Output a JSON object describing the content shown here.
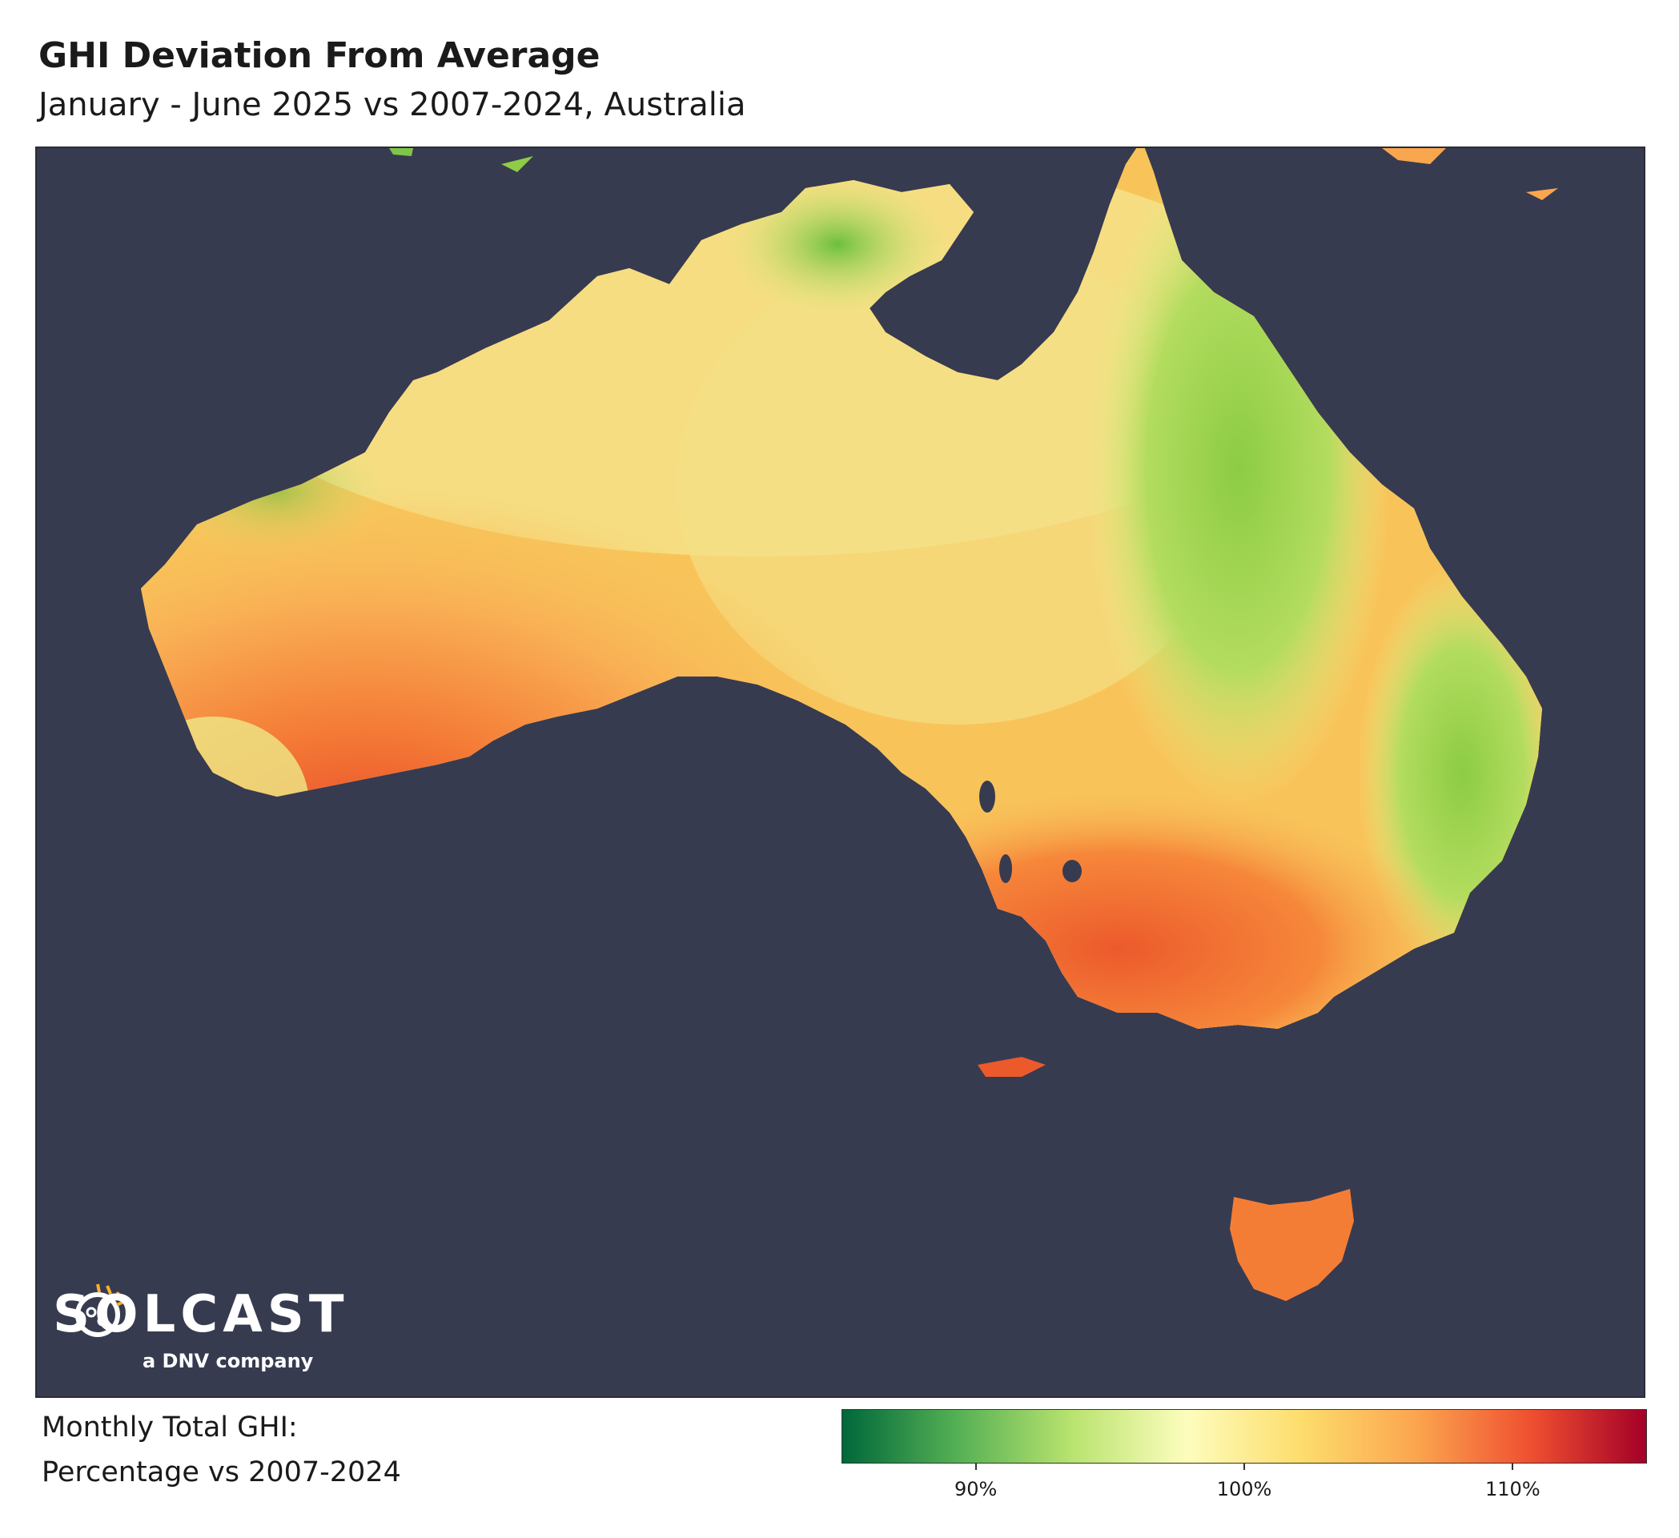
{
  "title": "GHI Deviation From Average",
  "subtitle": "January - June 2025 vs 2007-2024, Australia",
  "logo": {
    "wordmark": "SOLCAST",
    "tagline": "a DNV company"
  },
  "legend": {
    "title_line1": "Monthly Total GHI:",
    "title_line2": "Percentage vs 2007-2024",
    "range": [
      85,
      115
    ],
    "ticks": [
      {
        "value": 90,
        "label": "90%"
      },
      {
        "value": 100,
        "label": "100%"
      },
      {
        "value": 110,
        "label": "110%"
      }
    ],
    "gradient": [
      "#00683a",
      "#55b054",
      "#b9e36f",
      "#fdfdbd",
      "#fddd6c",
      "#fba54f",
      "#ef4f30",
      "#a30027"
    ]
  },
  "colors": {
    "ocean": "#373b50",
    "deviation_high": "#e8502a",
    "deviation_mid": "#f8c45a",
    "deviation_low": "#8fcc45"
  }
}
